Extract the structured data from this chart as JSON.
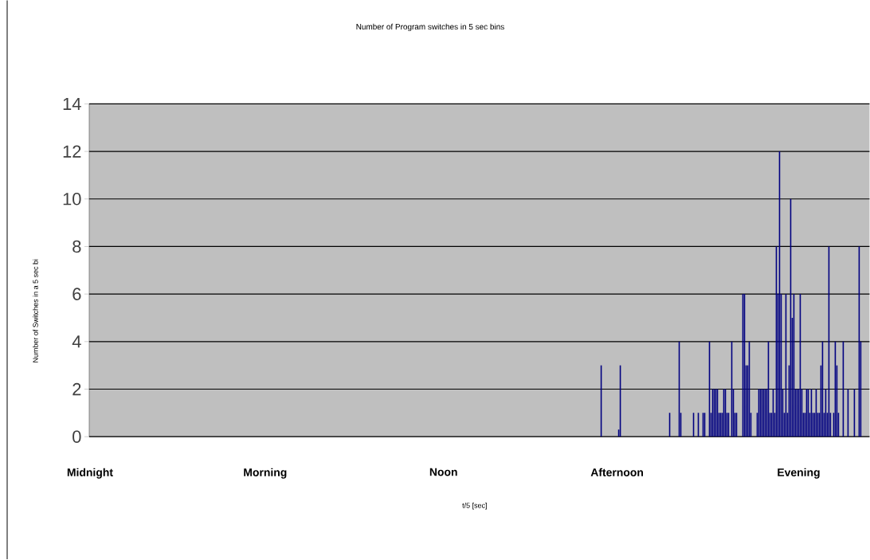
{
  "chart_data": {
    "type": "bar",
    "title": "Number of Program switches in 5 sec bins",
    "xlabel": "t/5 [sec]",
    "ylabel": "Number of Switches in a 5 sec bi",
    "categories": [
      "Midnight",
      null,
      null,
      null,
      null,
      null,
      null,
      null,
      null,
      null,
      null,
      null,
      null,
      null,
      null,
      null,
      null,
      null,
      null,
      null,
      null,
      null,
      null,
      null,
      null,
      null,
      null,
      null,
      null,
      null,
      null,
      null,
      null,
      null,
      null,
      null,
      null,
      null,
      null,
      null,
      null,
      null,
      null,
      null,
      null,
      null,
      null,
      null,
      null,
      null,
      null,
      null,
      null,
      null,
      null,
      null,
      null,
      null,
      null,
      null,
      null,
      null,
      null,
      null,
      null,
      null,
      null,
      null,
      null,
      null,
      null,
      null,
      null,
      null,
      null,
      null,
      null,
      null,
      null,
      null,
      null,
      null,
      null,
      null,
      null,
      null,
      null,
      null,
      null,
      null,
      null,
      null,
      null,
      null,
      null,
      null,
      null,
      null,
      null,
      null,
      null,
      null,
      null,
      null,
      null,
      null,
      null,
      null,
      null,
      null,
      "Morning",
      null,
      null,
      null,
      null,
      null,
      null,
      null,
      null,
      null,
      null,
      null,
      null,
      null,
      null,
      null,
      null,
      null,
      null,
      null,
      null,
      null,
      null,
      null,
      null,
      null,
      null,
      null,
      null,
      null,
      null,
      null,
      null,
      null,
      null,
      null,
      null,
      null,
      null,
      null,
      null,
      null,
      null,
      null,
      null,
      null,
      null,
      null,
      null,
      null,
      null,
      null,
      null,
      null,
      null,
      null,
      null,
      null,
      null,
      null,
      null,
      null,
      null,
      null,
      null,
      null,
      null,
      null,
      null,
      null,
      null,
      null,
      null,
      null,
      null,
      null,
      null,
      null,
      null,
      null,
      null,
      null,
      null,
      null,
      null,
      null,
      null,
      null,
      null,
      null,
      null,
      null,
      null,
      null,
      null,
      null,
      null,
      null,
      null,
      null,
      null,
      null,
      null,
      null,
      null,
      null,
      null,
      null,
      null,
      null,
      null,
      null,
      "Noon",
      null,
      null,
      null,
      null,
      null,
      null,
      null,
      null,
      null,
      null,
      null,
      null,
      null,
      null,
      null,
      null,
      null,
      null,
      null,
      null,
      null,
      null,
      null,
      null,
      null,
      null,
      null,
      null,
      null,
      null,
      null,
      null,
      null,
      null,
      null,
      null,
      null,
      null,
      null,
      null,
      null,
      null,
      null,
      null,
      null,
      null,
      null,
      null,
      null,
      null,
      null,
      null,
      null,
      null,
      null,
      null,
      null,
      null,
      null,
      null,
      null,
      null,
      null,
      null,
      null,
      null,
      null,
      null,
      null,
      null,
      null,
      null,
      null,
      null,
      null,
      null,
      null,
      null,
      null,
      null,
      null,
      null,
      null,
      null,
      null,
      null,
      null,
      null,
      null,
      null,
      null,
      null,
      null,
      null,
      null,
      null,
      null,
      null,
      null,
      null,
      null,
      null,
      null,
      null,
      null,
      null,
      null,
      null,
      "Afternoon",
      null,
      null,
      null,
      null,
      null,
      null,
      null,
      null,
      null,
      null,
      null,
      null,
      null,
      null,
      null,
      null,
      null,
      null,
      null,
      null,
      null,
      null,
      null,
      null,
      null,
      null,
      null,
      null,
      null,
      null,
      null,
      null,
      null,
      null,
      null,
      null,
      null,
      null,
      null,
      null,
      null,
      null,
      null,
      null,
      null,
      null,
      null,
      null,
      null,
      null,
      null,
      null,
      null,
      null,
      null,
      null,
      null,
      null,
      null,
      null,
      null,
      null,
      null,
      null,
      null,
      null,
      null,
      null,
      null,
      null,
      null,
      null,
      null,
      null,
      null,
      null,
      null,
      null,
      null,
      null,
      null,
      null,
      null,
      null,
      null,
      null,
      null,
      null,
      null,
      null,
      null,
      null,
      null,
      null,
      null,
      null,
      null,
      null,
      null,
      null,
      null,
      null,
      null,
      null,
      null,
      null,
      null,
      null,
      null,
      null,
      null,
      null,
      null,
      "Evening",
      null,
      null,
      null,
      null,
      null,
      null,
      null,
      null,
      null,
      null,
      null,
      null,
      null,
      null,
      null,
      null,
      null,
      null,
      null,
      null,
      null,
      null,
      null,
      null,
      null,
      null,
      null,
      null,
      null,
      null,
      null,
      null,
      null,
      null,
      null,
      null,
      null,
      null,
      null,
      null,
      null,
      null,
      null,
      null
    ],
    "values": [
      0,
      0,
      0,
      0,
      0,
      0,
      0,
      0,
      0,
      0,
      0,
      0,
      0,
      0,
      0,
      0,
      0,
      0,
      0,
      0,
      0,
      0,
      0,
      0,
      0,
      0,
      0,
      0,
      0,
      0,
      0,
      0,
      0,
      0,
      0,
      0,
      0,
      0,
      0,
      0,
      0,
      0,
      0,
      0,
      0,
      0,
      0,
      0,
      0,
      0,
      0,
      0,
      0,
      0,
      0,
      0,
      0,
      0,
      0,
      0,
      0,
      0,
      0,
      0,
      0,
      0,
      0,
      0,
      0,
      0,
      0,
      0,
      0,
      0,
      0,
      0,
      0,
      0,
      0,
      0,
      0,
      0,
      0,
      0,
      0,
      0,
      0,
      0,
      0,
      0,
      0,
      0,
      0,
      0,
      0,
      0,
      0,
      0,
      0,
      0,
      0,
      0,
      0,
      0,
      0,
      0,
      0,
      0,
      0,
      0,
      0,
      0,
      0,
      0,
      0,
      0,
      0,
      0,
      0,
      0,
      0,
      0,
      0,
      0,
      0,
      0,
      0,
      0,
      0,
      0,
      0,
      0,
      0,
      0,
      0,
      0,
      0,
      0,
      0,
      0,
      0,
      0,
      0,
      0,
      0,
      0,
      0,
      0,
      0,
      0,
      0,
      0,
      0,
      0,
      0,
      0,
      0,
      0,
      0,
      0,
      0,
      0,
      0,
      0,
      0,
      0,
      0,
      0,
      0,
      0,
      0,
      0,
      0,
      0,
      0,
      0,
      0,
      0,
      0,
      0,
      0,
      0,
      0,
      0,
      0,
      0,
      0,
      0,
      0,
      0,
      0,
      0,
      0,
      0,
      0,
      0,
      0,
      0,
      0,
      0,
      0,
      0,
      0,
      0,
      0,
      0,
      0,
      0,
      0,
      0,
      0,
      0,
      0,
      0,
      0,
      0,
      0,
      0,
      0,
      0,
      0,
      0,
      0,
      0,
      0,
      0,
      0,
      0,
      0,
      0,
      0,
      0,
      0,
      0,
      0,
      0,
      0,
      0,
      0,
      0,
      0,
      0,
      0,
      0,
      0,
      0,
      0,
      0,
      0,
      0,
      0,
      0,
      0,
      0,
      0,
      0,
      0,
      0,
      0,
      0,
      0,
      0,
      0,
      0,
      0,
      0,
      0,
      0,
      0,
      0,
      0,
      0,
      0,
      0,
      0,
      0,
      0,
      0,
      0,
      0,
      0,
      0,
      0,
      0,
      0,
      0,
      0,
      0,
      0,
      0,
      0,
      0,
      0,
      0,
      0,
      0,
      0,
      0,
      0,
      0,
      0,
      0,
      0,
      0,
      0,
      0,
      0,
      0,
      0,
      0,
      0,
      0,
      0,
      0,
      0,
      0,
      0,
      0,
      0,
      0,
      0,
      3,
      0,
      0,
      0,
      0,
      0,
      0,
      0,
      0,
      0,
      0,
      0.3,
      3,
      0,
      0,
      0,
      0,
      0,
      0,
      0,
      0,
      0,
      0,
      0,
      0,
      0,
      0,
      0,
      0,
      0,
      0,
      0,
      0,
      0,
      0,
      0,
      0,
      0,
      0,
      0,
      0,
      0,
      0,
      1,
      0,
      0,
      0,
      0,
      0,
      4,
      1,
      0,
      0,
      0,
      0,
      0,
      0,
      0,
      1,
      0,
      0,
      1,
      0,
      0,
      1,
      1,
      0,
      0,
      4,
      1,
      2,
      2,
      2,
      2,
      1,
      1,
      1,
      2,
      2,
      1,
      1,
      0,
      4,
      2,
      1,
      1,
      0,
      0,
      0,
      6,
      6,
      3,
      3,
      4,
      1,
      0,
      0,
      0,
      1,
      2,
      2,
      2,
      2,
      2,
      2,
      4,
      1,
      1,
      2,
      1,
      8,
      6,
      12,
      6,
      2,
      1,
      6,
      1,
      3,
      10,
      5,
      6,
      2,
      2,
      2,
      6,
      2,
      1,
      1,
      2,
      2,
      1,
      2,
      1,
      1,
      2,
      1,
      1,
      3,
      4,
      1,
      2,
      1,
      8,
      1,
      0,
      1,
      4,
      3,
      1,
      0,
      0,
      4,
      0,
      0,
      2,
      0,
      0,
      0,
      2,
      0,
      0,
      8,
      4,
      0,
      0,
      0,
      0,
      0
    ],
    "color": "#000080",
    "ylim": [
      0,
      14
    ],
    "yticks": [
      0,
      2,
      4,
      6,
      8,
      10,
      12,
      14
    ],
    "grid": "y"
  }
}
